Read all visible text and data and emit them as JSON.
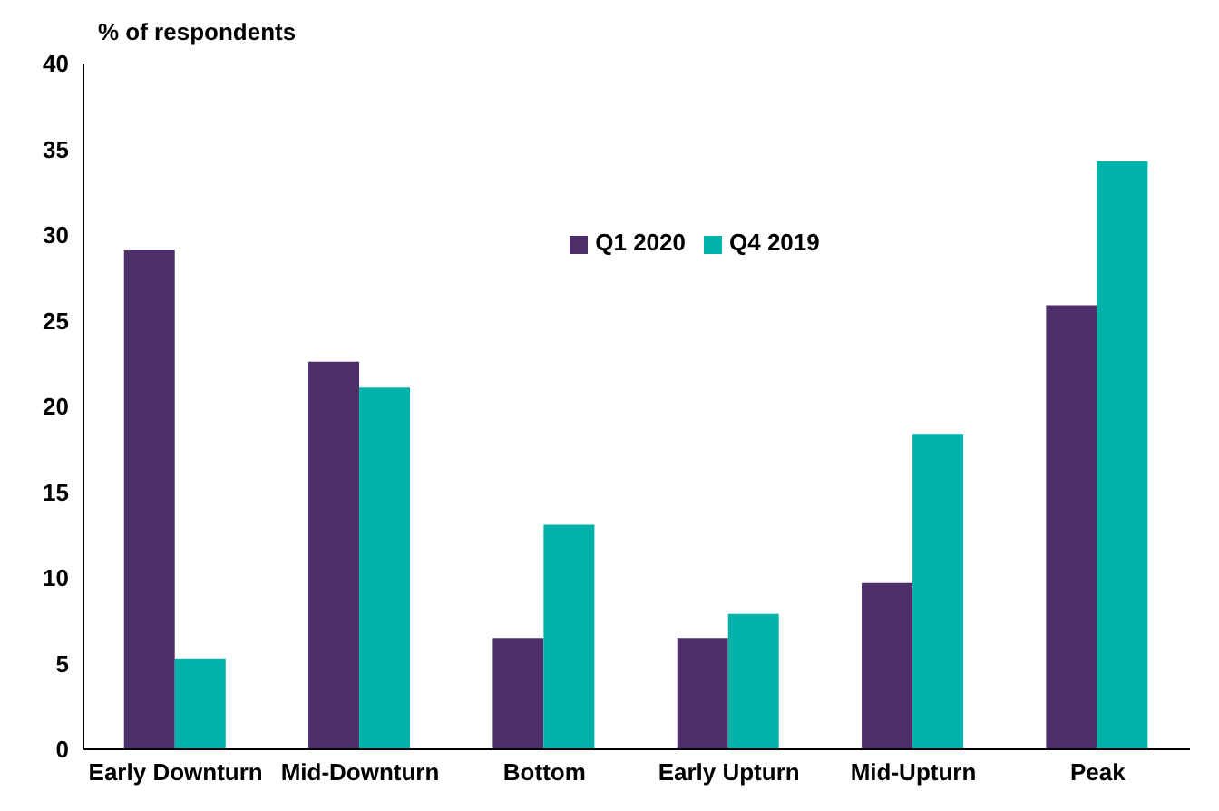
{
  "chart_data": {
    "type": "bar",
    "ylabel": "% of respondents",
    "categories": [
      "Early Downturn",
      "Mid-Downturn",
      "Bottom",
      "Early Upturn",
      "Mid-Upturn",
      "Peak"
    ],
    "series": [
      {
        "name": "Q1 2020",
        "color": "#4d2f69",
        "values": [
          29.1,
          22.6,
          6.5,
          6.5,
          9.7,
          25.9
        ]
      },
      {
        "name": "Q4 2019",
        "color": "#00b2a9",
        "values": [
          5.3,
          21.1,
          13.1,
          7.9,
          18.4,
          34.3
        ]
      }
    ],
    "ylim": [
      0,
      40
    ],
    "yticks": [
      0,
      5,
      10,
      15,
      20,
      25,
      30,
      35,
      40
    ],
    "grid": false,
    "legend": "top"
  }
}
